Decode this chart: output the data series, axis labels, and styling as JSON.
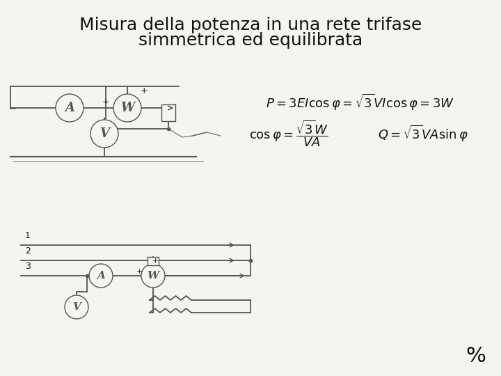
{
  "title_line1": "Misura della potenza in una rete trifase",
  "title_line2": "simmetrica ed equilibrata",
  "title_fontsize": 18,
  "formula1": "$P = 3EI \\cos\\varphi = \\sqrt{3}VI \\cos\\varphi = 3W$",
  "formula2": "$\\cos\\varphi = \\dfrac{\\sqrt{3}W}{VA}$",
  "formula3": "$Q = \\sqrt{3}VA \\sin\\varphi$",
  "formula_fontsize": 13,
  "bg": "#f5f5f0",
  "lc": "#555550",
  "lw": 1.0
}
